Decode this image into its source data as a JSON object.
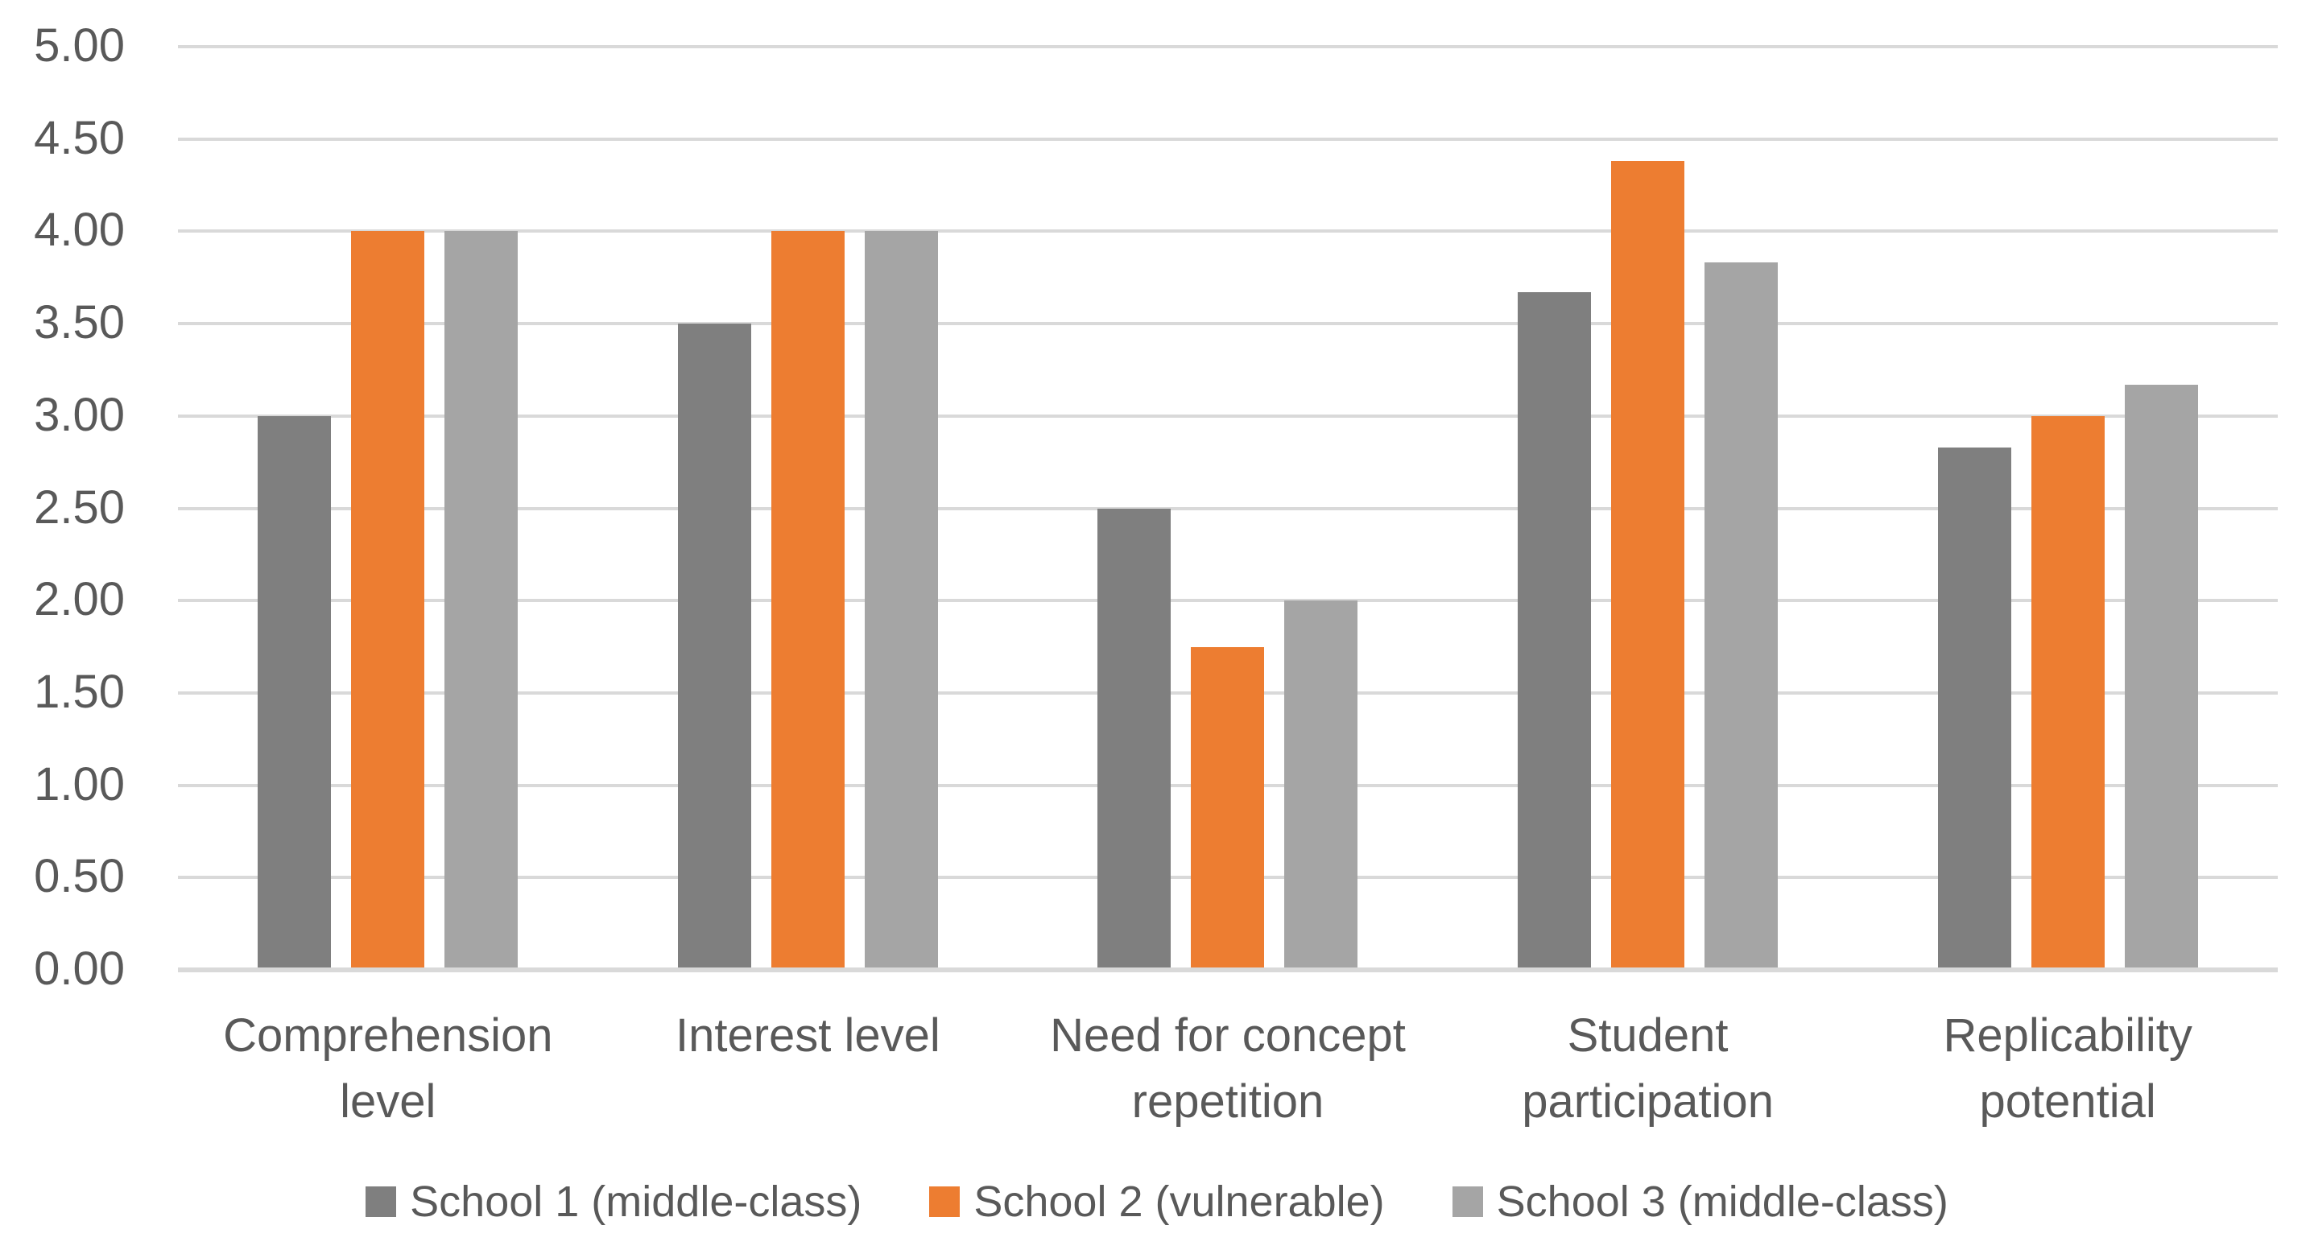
{
  "chart_data": {
    "type": "bar",
    "title": "",
    "categories": [
      "Comprehension level",
      "Interest level",
      "Need for concept repetition",
      "Student participation",
      "Replicability potential"
    ],
    "series": [
      {
        "name": "School 1 (middle-class)",
        "color": "#7F7F7F",
        "values": [
          3.0,
          3.5,
          2.5,
          3.67,
          2.83
        ]
      },
      {
        "name": "School 2 (vulnerable)",
        "color": "#ED7D31",
        "values": [
          4.0,
          4.0,
          1.75,
          4.38,
          3.0
        ]
      },
      {
        "name": "School 3 (middle-class)",
        "color": "#A5A5A5",
        "values": [
          4.0,
          4.0,
          2.0,
          3.83,
          3.17
        ]
      }
    ],
    "ylim": [
      0,
      5
    ],
    "ytick_step": 0.5,
    "ytick_labels": [
      "0.00",
      "0.50",
      "1.00",
      "1.50",
      "2.00",
      "2.50",
      "3.00",
      "3.50",
      "4.00",
      "4.50",
      "5.00"
    ],
    "grid": true,
    "legend_position": "bottom"
  },
  "style": {
    "text_color": "#595959",
    "gridline_color": "#D9D9D9",
    "background": "#FFFFFF"
  }
}
